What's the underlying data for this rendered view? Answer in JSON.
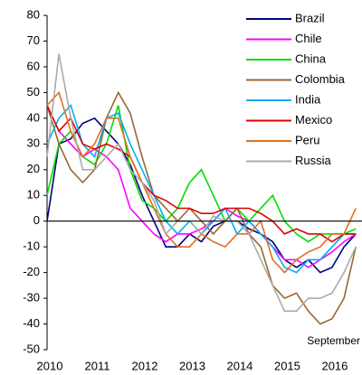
{
  "chart_data": {
    "type": "line",
    "annotation": "September",
    "x": [
      2010,
      2010.25,
      2010.5,
      2010.75,
      2011,
      2011.25,
      2011.5,
      2011.75,
      2012,
      2012.25,
      2012.5,
      2012.75,
      2013,
      2013.25,
      2013.5,
      2013.75,
      2014,
      2014.25,
      2014.5,
      2014.75,
      2015,
      2015.25,
      2015.5,
      2015.75,
      2016,
      2016.25,
      2016.5
    ],
    "series": [
      {
        "name": "Brazil",
        "color": "#000080",
        "values": [
          0,
          30,
          32,
          38,
          40,
          35,
          30,
          22,
          10,
          0,
          -10,
          -10,
          -5,
          -8,
          -2,
          0,
          0,
          -3,
          -5,
          -8,
          -15,
          -18,
          -15,
          -20,
          -18,
          -10,
          -5
        ]
      },
      {
        "name": "Chile",
        "color": "#ff00ff",
        "values": [
          45,
          35,
          30,
          25,
          28,
          25,
          20,
          5,
          0,
          -5,
          -8,
          -5,
          -5,
          -3,
          0,
          5,
          2,
          0,
          -5,
          -10,
          -15,
          -15,
          -18,
          -15,
          -12,
          -8,
          -5
        ]
      },
      {
        "name": "China",
        "color": "#00dd00",
        "values": [
          10,
          30,
          35,
          25,
          22,
          30,
          45,
          20,
          8,
          5,
          0,
          5,
          15,
          20,
          10,
          0,
          5,
          0,
          5,
          10,
          0,
          -5,
          -8,
          -5,
          -5,
          -5,
          -3
        ]
      },
      {
        "name": "Colombia",
        "color": "#996633",
        "values": [
          45,
          30,
          20,
          15,
          20,
          40,
          50,
          42,
          25,
          10,
          5,
          0,
          5,
          0,
          -5,
          0,
          5,
          -5,
          -10,
          -25,
          -30,
          -28,
          -35,
          -40,
          -38,
          -30,
          -10
        ]
      },
      {
        "name": "India",
        "color": "#00b0f0",
        "values": [
          30,
          40,
          45,
          30,
          25,
          40,
          42,
          30,
          20,
          10,
          0,
          -5,
          0,
          -5,
          0,
          5,
          -5,
          0,
          -5,
          -10,
          -18,
          -20,
          -15,
          -15,
          -10,
          -5,
          -5
        ]
      },
      {
        "name": "Mexico",
        "color": "#e00000",
        "values": [
          45,
          35,
          40,
          30,
          28,
          30,
          28,
          25,
          15,
          10,
          8,
          5,
          5,
          3,
          3,
          5,
          5,
          5,
          3,
          0,
          -5,
          -3,
          -5,
          -5,
          -8,
          -5,
          -5
        ]
      },
      {
        "name": "Peru",
        "color": "#e07020",
        "values": [
          45,
          50,
          35,
          25,
          30,
          40,
          40,
          25,
          15,
          5,
          -5,
          -10,
          -10,
          -5,
          -8,
          -10,
          -5,
          -5,
          0,
          -15,
          -20,
          -15,
          -12,
          -10,
          -5,
          -5,
          5
        ]
      },
      {
        "name": "Russia",
        "color": "#aaaaaa",
        "values": [
          25,
          65,
          40,
          20,
          20,
          25,
          30,
          20,
          15,
          8,
          -5,
          0,
          0,
          -5,
          2,
          0,
          0,
          -5,
          -15,
          -25,
          -35,
          -35,
          -30,
          -30,
          -28,
          -20,
          -10
        ]
      }
    ],
    "xlim": [
      2010,
      2016.63
    ],
    "xticks": [
      2010,
      2011,
      2012,
      2013,
      2014,
      2015,
      2016
    ],
    "ylim": [
      -50,
      80
    ],
    "yticks": [
      -50,
      -40,
      -30,
      -20,
      -10,
      0,
      10,
      20,
      30,
      40,
      50,
      60,
      70,
      80
    ],
    "grid": false
  }
}
